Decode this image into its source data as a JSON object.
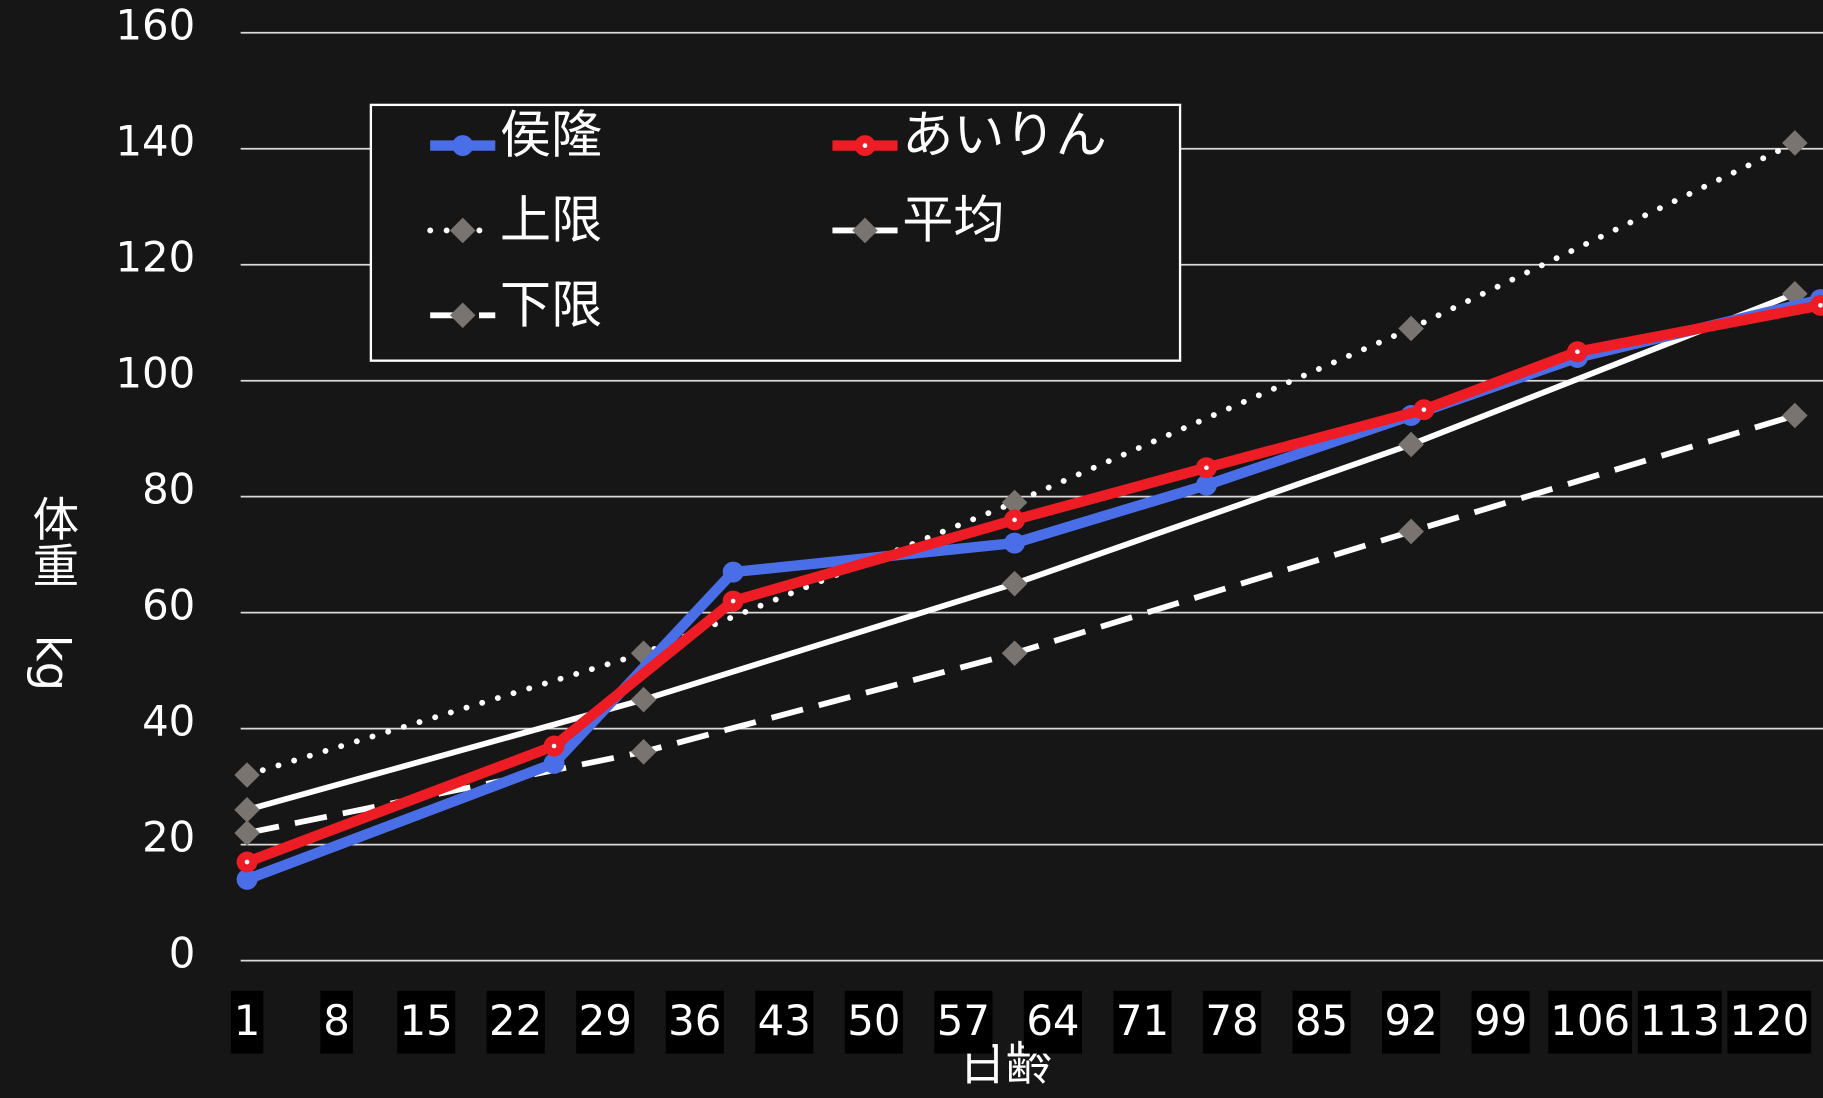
{
  "chart_data": {
    "type": "line",
    "x_label": "日齢",
    "y_label": "体重　kg",
    "xlim": [
      0.5,
      124.2
    ],
    "xticks": [
      1,
      8,
      15,
      22,
      29,
      36,
      43,
      50,
      57,
      64,
      71,
      78,
      85,
      92,
      99,
      106,
      113,
      120
    ],
    "ylim": [
      0,
      160
    ],
    "yticks": [
      0,
      20,
      40,
      60,
      80,
      100,
      120,
      140,
      160
    ],
    "grid": true,
    "legend": "upper left",
    "series": [
      {
        "name": "侯隆",
        "color": "#4a6ee8",
        "line_style": "solid",
        "marker": "circle",
        "x": [
          1,
          25,
          39,
          61,
          76,
          92,
          105,
          124
        ],
        "values": [
          14,
          34,
          67,
          72,
          82,
          94,
          104,
          114
        ]
      },
      {
        "name": "あいりん",
        "color": "#ee1c24",
        "line_style": "solid",
        "marker": "circle",
        "x": [
          1,
          25,
          39,
          61,
          76,
          93,
          105,
          124
        ],
        "values": [
          17,
          37,
          62,
          76,
          85,
          95,
          105,
          113
        ]
      },
      {
        "name": "上限",
        "color": "#ffffff",
        "line_style": "dotted",
        "marker": "diamond",
        "x": [
          1,
          32,
          61,
          92,
          122
        ],
        "values": [
          32,
          53,
          79,
          109,
          141
        ]
      },
      {
        "name": "平均",
        "color": "#ffffff",
        "line_style": "solid",
        "marker": "diamond",
        "x": [
          1,
          32,
          61,
          92,
          122
        ],
        "values": [
          26,
          45,
          65,
          89,
          115
        ]
      },
      {
        "name": "下限",
        "color": "#ffffff",
        "line_style": "dashed",
        "marker": "diamond",
        "x": [
          1,
          32,
          61,
          92,
          122
        ],
        "values": [
          22,
          36,
          53,
          74,
          94
        ]
      }
    ]
  }
}
